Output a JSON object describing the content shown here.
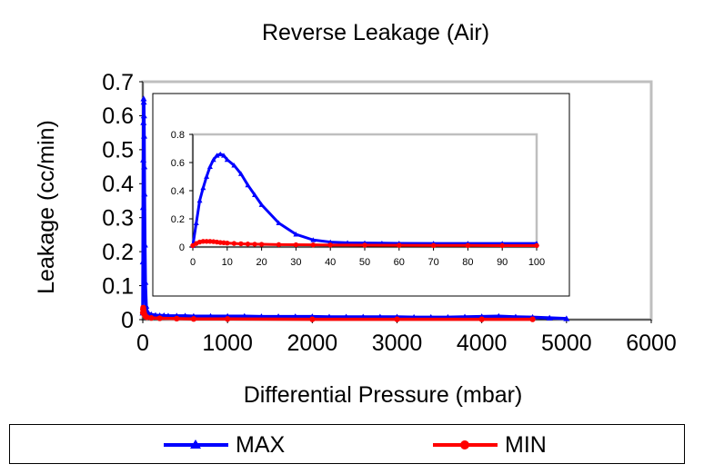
{
  "chart_data": [
    {
      "type": "line",
      "title": "Reverse Leakage (Air)",
      "xlabel": "Differential Pressure (mbar)",
      "ylabel": "Leakage (cc/min)",
      "xlim": [
        0,
        6000
      ],
      "ylim": [
        0,
        0.7
      ],
      "xticks": [
        "0",
        "1000",
        "2000",
        "3000",
        "4000",
        "5000",
        "6000"
      ],
      "yticks": [
        "0",
        "0.1",
        "0.2",
        "0.3",
        "0.4",
        "0.5",
        "0.6",
        "0.7"
      ],
      "grid": false,
      "legend_position": "bottom",
      "series": [
        {
          "name": "MAX",
          "color": "#0000ff",
          "marker": "triangle",
          "x": [
            0,
            2,
            4,
            6,
            8,
            10,
            12,
            14,
            16,
            18,
            20,
            25,
            30,
            40,
            50,
            70,
            100,
            150,
            200,
            250,
            300,
            400,
            500,
            600,
            800,
            1000,
            1200,
            1400,
            1600,
            1800,
            2000,
            2200,
            2400,
            2600,
            2800,
            3000,
            3200,
            3400,
            3600,
            3800,
            4000,
            4200,
            4400,
            4600,
            4800,
            5000
          ],
          "y": [
            0.02,
            0.17,
            0.33,
            0.47,
            0.58,
            0.65,
            0.64,
            0.6,
            0.54,
            0.45,
            0.37,
            0.22,
            0.11,
            0.04,
            0.025,
            0.018,
            0.015,
            0.013,
            0.012,
            0.012,
            0.011,
            0.011,
            0.011,
            0.01,
            0.01,
            0.01,
            0.01,
            0.009,
            0.009,
            0.009,
            0.009,
            0.008,
            0.008,
            0.008,
            0.008,
            0.008,
            0.007,
            0.007,
            0.007,
            0.008,
            0.009,
            0.01,
            0.008,
            0.007,
            0.005,
            0.003
          ]
        },
        {
          "name": "MIN",
          "color": "#ff0000",
          "marker": "circle",
          "x": [
            0,
            2,
            4,
            6,
            8,
            10,
            12,
            14,
            16,
            18,
            20,
            25,
            30,
            40,
            50,
            100,
            200,
            400,
            600,
            1000,
            2000,
            3000,
            4000,
            4600
          ],
          "y": [
            0.02,
            0.03,
            0.035,
            0.035,
            0.03,
            0.025,
            0.022,
            0.02,
            0.018,
            0.016,
            0.015,
            0.012,
            0.01,
            0.008,
            0.007,
            0.005,
            0.004,
            0.003,
            0.002,
            0.002,
            0.001,
            0.001,
            0.001,
            0.001
          ]
        }
      ]
    },
    {
      "type": "line",
      "title": "",
      "xlabel": "",
      "ylabel": "",
      "xlim": [
        0,
        100
      ],
      "ylim": [
        0,
        0.8
      ],
      "xticks": [
        "0",
        "10",
        "20",
        "30",
        "40",
        "50",
        "60",
        "70",
        "80",
        "90",
        "100"
      ],
      "yticks": [
        "0",
        "0.2",
        "0.4",
        "0.6",
        "0.8"
      ],
      "grid": false,
      "series": [
        {
          "name": "MAX",
          "color": "#0000ff",
          "marker": "triangle",
          "x": [
            0,
            1,
            2,
            3,
            4,
            5,
            6,
            7,
            8,
            9,
            10,
            12,
            14,
            16,
            18,
            20,
            25,
            30,
            35,
            40,
            45,
            50,
            55,
            60,
            70,
            80,
            90,
            100
          ],
          "y": [
            0.01,
            0.17,
            0.33,
            0.42,
            0.5,
            0.57,
            0.62,
            0.65,
            0.66,
            0.65,
            0.62,
            0.58,
            0.52,
            0.44,
            0.37,
            0.3,
            0.17,
            0.09,
            0.05,
            0.035,
            0.03,
            0.028,
            0.027,
            0.026,
            0.025,
            0.025,
            0.025,
            0.025
          ]
        },
        {
          "name": "MIN",
          "color": "#ff0000",
          "marker": "circle",
          "x": [
            0,
            1,
            2,
            3,
            4,
            5,
            6,
            7,
            8,
            9,
            10,
            12,
            14,
            16,
            18,
            20,
            25,
            30,
            35,
            40,
            50,
            60,
            70,
            80,
            90,
            100
          ],
          "y": [
            0.01,
            0.025,
            0.035,
            0.04,
            0.04,
            0.04,
            0.038,
            0.035,
            0.032,
            0.03,
            0.028,
            0.025,
            0.023,
            0.021,
            0.02,
            0.019,
            0.017,
            0.016,
            0.015,
            0.014,
            0.013,
            0.012,
            0.011,
            0.011,
            0.01,
            0.01
          ]
        }
      ]
    }
  ],
  "legend": {
    "items": [
      {
        "label": "MAX",
        "color": "#0000ff",
        "marker": "triangle"
      },
      {
        "label": "MIN",
        "color": "#ff0000",
        "marker": "circle"
      }
    ]
  }
}
